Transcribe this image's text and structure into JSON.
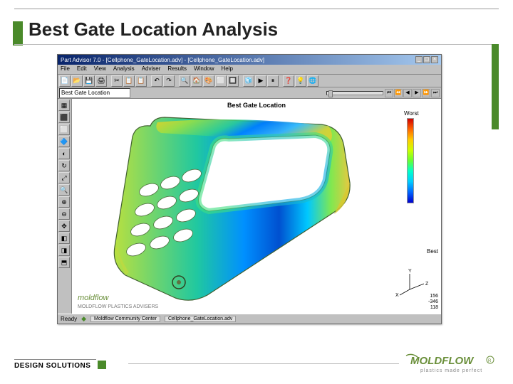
{
  "slide": {
    "title": "Best Gate Location Analysis",
    "footer_label": "DESIGN SOLUTIONS",
    "brand_name": "MOLDFLOW",
    "brand_tagline": "plastics made perfect"
  },
  "window": {
    "title": "Part Advisor 7.0 - [Cellphone_GateLocation.adv] - [Cellphone_GateLocation.adv]",
    "menu": [
      "File",
      "Edit",
      "View",
      "Analysis",
      "Adviser",
      "Results",
      "Window",
      "Help"
    ],
    "combo_value": "Best Gate Location",
    "canvas_title": "Best Gate Location",
    "legend_top": "Worst",
    "legend_bottom": "Best",
    "status_left": "Ready",
    "status_tab1": "Moldflow Community Center",
    "status_tab2": "Cellphone_GateLocation.adv",
    "coords": [
      "156",
      "-346",
      "118"
    ],
    "compass_labels": [
      "Y",
      "Z",
      "X"
    ],
    "moldflow_text": "moldflow",
    "moldflow_sub": "MOLDFLOW PLASTICS ADVISERS"
  },
  "toolbar_icons": [
    "📄",
    "📂",
    "💾",
    "🖨",
    "|",
    "✂",
    "📋",
    "📋",
    "|",
    "↶",
    "↷",
    "|",
    "🔍",
    "🏠",
    "🎨",
    "⬜",
    "🔲",
    "|",
    "🧊",
    "▶",
    "⏸",
    "|",
    "❓",
    "💡",
    "🌐"
  ],
  "play_icons": [
    "⏮",
    "⏪",
    "◀",
    "▶",
    "⏩",
    "⏭"
  ],
  "left_icons": [
    "▦",
    "⬛",
    "⬜",
    "🔷",
    "◐",
    "↻",
    "⤢",
    "🔍",
    "⊕",
    "⊖",
    "✥",
    "◧",
    "◨",
    "⬒"
  ],
  "colors": {
    "accent": "#4a8a2a",
    "titlebar_start": "#08246b",
    "titlebar_end": "#a6caf0",
    "canvas_bg": "#ffffff",
    "gradient": [
      "#d00000",
      "#ff6600",
      "#ffcc00",
      "#ccff00",
      "#66ff33",
      "#00ffcc",
      "#00ccff",
      "#0066ff",
      "#0000cc"
    ]
  }
}
